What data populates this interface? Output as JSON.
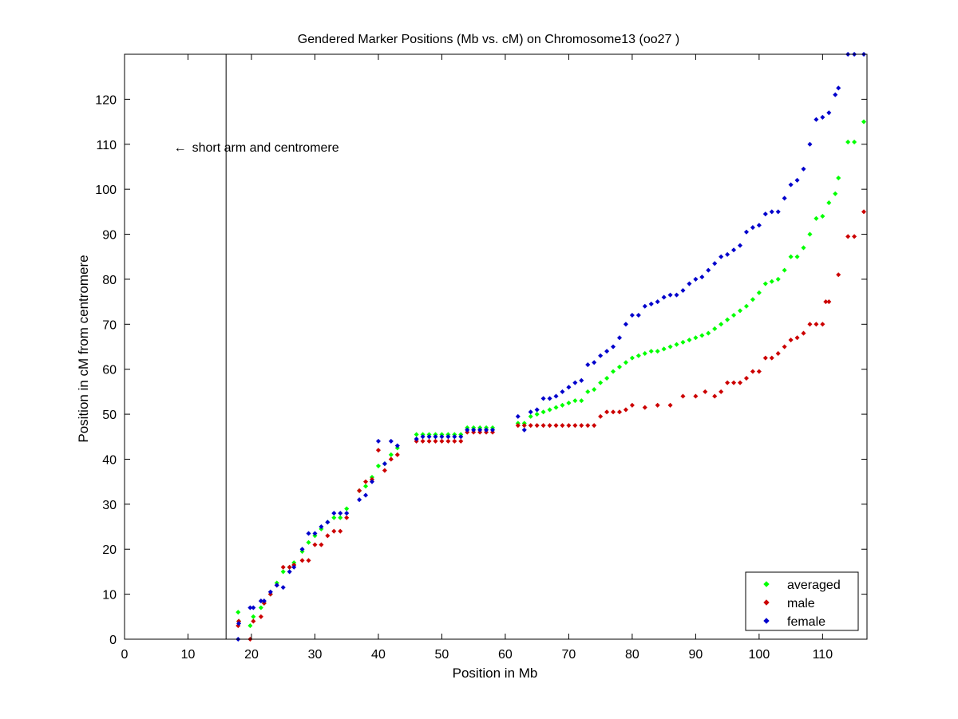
{
  "chart_data": {
    "type": "scatter",
    "title": "Gendered Marker Positions (Mb vs. cM) on Chromosome13 (oo27 )",
    "xlabel": "Position in Mb",
    "ylabel": "Position in cM from centromere",
    "xlim": [
      0,
      117
    ],
    "ylim": [
      0,
      130
    ],
    "xticks": [
      0,
      10,
      20,
      30,
      40,
      50,
      60,
      70,
      80,
      90,
      100,
      110
    ],
    "yticks": [
      0,
      10,
      20,
      30,
      40,
      50,
      60,
      70,
      80,
      90,
      100,
      110,
      120
    ],
    "grid": false,
    "legend_position": "bottom-right",
    "centromere_line_x": 16,
    "annotation": {
      "text": "short arm and centromere",
      "arrow": "←",
      "x": 8,
      "y": 110
    },
    "series": [
      {
        "name": "averaged",
        "color": "#00ff00",
        "points": [
          [
            17.9,
            6.0
          ],
          [
            18.0,
            4.0
          ],
          [
            19.8,
            3.0
          ],
          [
            20.3,
            5.0
          ],
          [
            21.5,
            7.0
          ],
          [
            22.0,
            8.0
          ],
          [
            23.0,
            10.0
          ],
          [
            24.0,
            12.5
          ],
          [
            25.0,
            15.0
          ],
          [
            26.0,
            16.0
          ],
          [
            26.7,
            17.0
          ],
          [
            28.0,
            19.5
          ],
          [
            29.0,
            21.5
          ],
          [
            30.0,
            23.0
          ],
          [
            31.0,
            24.5
          ],
          [
            32.0,
            26.0
          ],
          [
            33.0,
            27.0
          ],
          [
            34.0,
            27.0
          ],
          [
            35.0,
            29.0
          ],
          [
            37.0,
            33.0
          ],
          [
            38.0,
            34.0
          ],
          [
            39.0,
            36.0
          ],
          [
            40.0,
            38.5
          ],
          [
            41.0,
            39.0
          ],
          [
            42.0,
            41.0
          ],
          [
            43.0,
            42.5
          ],
          [
            46.0,
            45.5
          ],
          [
            47.0,
            45.5
          ],
          [
            48.0,
            45.5
          ],
          [
            49.0,
            45.5
          ],
          [
            50.0,
            45.5
          ],
          [
            51.0,
            45.5
          ],
          [
            52.0,
            45.5
          ],
          [
            53.0,
            45.5
          ],
          [
            54.0,
            47.0
          ],
          [
            55.0,
            47.0
          ],
          [
            56.0,
            47.0
          ],
          [
            57.0,
            47.0
          ],
          [
            58.0,
            47.0
          ],
          [
            62.0,
            48.0
          ],
          [
            63.0,
            48.0
          ],
          [
            64.0,
            49.5
          ],
          [
            65.0,
            50.0
          ],
          [
            66.0,
            50.5
          ],
          [
            67.0,
            51.0
          ],
          [
            68.0,
            51.5
          ],
          [
            69.0,
            52.0
          ],
          [
            70.0,
            52.5
          ],
          [
            71.0,
            53.0
          ],
          [
            72.0,
            53.0
          ],
          [
            73.0,
            55.0
          ],
          [
            74.0,
            55.5
          ],
          [
            75.0,
            57.0
          ],
          [
            76.0,
            58.0
          ],
          [
            77.0,
            59.5
          ],
          [
            78.0,
            60.5
          ],
          [
            79.0,
            61.5
          ],
          [
            80.0,
            62.5
          ],
          [
            81.0,
            63.0
          ],
          [
            82.0,
            63.5
          ],
          [
            83.0,
            64.0
          ],
          [
            84.0,
            64.0
          ],
          [
            85.0,
            64.5
          ],
          [
            86.0,
            65.0
          ],
          [
            87.0,
            65.5
          ],
          [
            88.0,
            66.0
          ],
          [
            89.0,
            66.5
          ],
          [
            90.0,
            67.0
          ],
          [
            91.0,
            67.5
          ],
          [
            92.0,
            68.0
          ],
          [
            93.0,
            69.0
          ],
          [
            94.0,
            70.0
          ],
          [
            95.0,
            71.0
          ],
          [
            96.0,
            72.0
          ],
          [
            97.0,
            73.0
          ],
          [
            98.0,
            74.0
          ],
          [
            99.0,
            75.5
          ],
          [
            100.0,
            77.0
          ],
          [
            101.0,
            79.0
          ],
          [
            102.0,
            79.5
          ],
          [
            103.0,
            80.0
          ],
          [
            104.0,
            82.0
          ],
          [
            105.0,
            85.0
          ],
          [
            106.0,
            85.0
          ],
          [
            107.0,
            87.0
          ],
          [
            108.0,
            90.0
          ],
          [
            109.0,
            93.5
          ],
          [
            110.0,
            94.0
          ],
          [
            111.0,
            97.0
          ],
          [
            112.0,
            99.0
          ],
          [
            112.5,
            102.5
          ],
          [
            114.0,
            110.5
          ],
          [
            115.0,
            110.5
          ],
          [
            116.5,
            115.0
          ]
        ]
      },
      {
        "name": "male",
        "color": "#cc0000",
        "points": [
          [
            17.9,
            3.0
          ],
          [
            18.0,
            4.0
          ],
          [
            19.8,
            0.0
          ],
          [
            20.3,
            4.0
          ],
          [
            21.5,
            5.0
          ],
          [
            22.0,
            8.0
          ],
          [
            23.0,
            10.0
          ],
          [
            24.0,
            12.0
          ],
          [
            25.0,
            16.0
          ],
          [
            26.0,
            16.0
          ],
          [
            26.7,
            16.5
          ],
          [
            28.0,
            17.5
          ],
          [
            29.0,
            17.5
          ],
          [
            30.0,
            21.0
          ],
          [
            31.0,
            21.0
          ],
          [
            32.0,
            23.0
          ],
          [
            33.0,
            24.0
          ],
          [
            34.0,
            24.0
          ],
          [
            35.0,
            27.0
          ],
          [
            37.0,
            33.0
          ],
          [
            38.0,
            35.0
          ],
          [
            39.0,
            35.5
          ],
          [
            40.0,
            42.0
          ],
          [
            41.0,
            37.5
          ],
          [
            42.0,
            40.0
          ],
          [
            43.0,
            41.0
          ],
          [
            46.0,
            44.0
          ],
          [
            47.0,
            44.0
          ],
          [
            48.0,
            44.0
          ],
          [
            49.0,
            44.0
          ],
          [
            50.0,
            44.0
          ],
          [
            51.0,
            44.0
          ],
          [
            52.0,
            44.0
          ],
          [
            53.0,
            44.0
          ],
          [
            54.0,
            46.0
          ],
          [
            55.0,
            46.0
          ],
          [
            56.0,
            46.0
          ],
          [
            57.0,
            46.0
          ],
          [
            58.0,
            46.0
          ],
          [
            62.0,
            47.5
          ],
          [
            63.0,
            47.5
          ],
          [
            64.0,
            47.5
          ],
          [
            65.0,
            47.5
          ],
          [
            66.0,
            47.5
          ],
          [
            67.0,
            47.5
          ],
          [
            68.0,
            47.5
          ],
          [
            69.0,
            47.5
          ],
          [
            70.0,
            47.5
          ],
          [
            71.0,
            47.5
          ],
          [
            72.0,
            47.5
          ],
          [
            73.0,
            47.5
          ],
          [
            74.0,
            47.5
          ],
          [
            75.0,
            49.5
          ],
          [
            76.0,
            50.5
          ],
          [
            77.0,
            50.5
          ],
          [
            78.0,
            50.5
          ],
          [
            79.0,
            51.0
          ],
          [
            80.0,
            52.0
          ],
          [
            82.0,
            51.5
          ],
          [
            84.0,
            52.0
          ],
          [
            86.0,
            52.0
          ],
          [
            88.0,
            54.0
          ],
          [
            90.0,
            54.0
          ],
          [
            91.5,
            55.0
          ],
          [
            93.0,
            54.0
          ],
          [
            94.0,
            55.0
          ],
          [
            95.0,
            57.0
          ],
          [
            96.0,
            57.0
          ],
          [
            97.0,
            57.0
          ],
          [
            98.0,
            58.0
          ],
          [
            99.0,
            59.5
          ],
          [
            100.0,
            59.5
          ],
          [
            101.0,
            62.5
          ],
          [
            102.0,
            62.5
          ],
          [
            103.0,
            63.5
          ],
          [
            104.0,
            65.0
          ],
          [
            105.0,
            66.5
          ],
          [
            106.0,
            67.0
          ],
          [
            107.0,
            68.0
          ],
          [
            108.0,
            70.0
          ],
          [
            109.0,
            70.0
          ],
          [
            110.0,
            70.0
          ],
          [
            110.5,
            75.0
          ],
          [
            111.0,
            75.0
          ],
          [
            112.5,
            81.0
          ],
          [
            114.0,
            89.5
          ],
          [
            115.0,
            89.5
          ],
          [
            116.5,
            95.0
          ]
        ]
      },
      {
        "name": "female",
        "color": "#0000cc",
        "points": [
          [
            17.9,
            0.0
          ],
          [
            18.0,
            3.5
          ],
          [
            19.8,
            7.0
          ],
          [
            20.3,
            7.0
          ],
          [
            21.5,
            8.5
          ],
          [
            22.0,
            8.5
          ],
          [
            23.0,
            10.5
          ],
          [
            24.0,
            12.0
          ],
          [
            25.0,
            11.5
          ],
          [
            26.0,
            15.0
          ],
          [
            26.7,
            16.0
          ],
          [
            28.0,
            20.0
          ],
          [
            29.0,
            23.5
          ],
          [
            30.0,
            23.5
          ],
          [
            31.0,
            25.0
          ],
          [
            32.0,
            26.0
          ],
          [
            33.0,
            28.0
          ],
          [
            34.0,
            28.0
          ],
          [
            35.0,
            28.0
          ],
          [
            37.0,
            31.0
          ],
          [
            38.0,
            32.0
          ],
          [
            39.0,
            35.0
          ],
          [
            40.0,
            44.0
          ],
          [
            41.0,
            39.0
          ],
          [
            42.0,
            44.0
          ],
          [
            43.0,
            43.0
          ],
          [
            46.0,
            44.5
          ],
          [
            47.0,
            45.0
          ],
          [
            48.0,
            45.0
          ],
          [
            49.0,
            45.0
          ],
          [
            50.0,
            45.0
          ],
          [
            51.0,
            45.0
          ],
          [
            52.0,
            45.0
          ],
          [
            53.0,
            45.0
          ],
          [
            54.0,
            46.5
          ],
          [
            55.0,
            46.5
          ],
          [
            56.0,
            46.5
          ],
          [
            57.0,
            46.5
          ],
          [
            58.0,
            46.5
          ],
          [
            62.0,
            49.5
          ],
          [
            63.0,
            46.5
          ],
          [
            64.0,
            50.5
          ],
          [
            65.0,
            51.0
          ],
          [
            66.0,
            53.5
          ],
          [
            67.0,
            53.5
          ],
          [
            68.0,
            54.0
          ],
          [
            69.0,
            55.0
          ],
          [
            70.0,
            56.0
          ],
          [
            71.0,
            57.0
          ],
          [
            72.0,
            57.5
          ],
          [
            73.0,
            61.0
          ],
          [
            74.0,
            61.5
          ],
          [
            75.0,
            63.0
          ],
          [
            76.0,
            64.0
          ],
          [
            77.0,
            65.0
          ],
          [
            78.0,
            67.0
          ],
          [
            79.0,
            70.0
          ],
          [
            80.0,
            72.0
          ],
          [
            81.0,
            72.0
          ],
          [
            82.0,
            74.0
          ],
          [
            83.0,
            74.5
          ],
          [
            84.0,
            75.0
          ],
          [
            85.0,
            76.0
          ],
          [
            86.0,
            76.5
          ],
          [
            87.0,
            76.5
          ],
          [
            88.0,
            77.5
          ],
          [
            89.0,
            79.0
          ],
          [
            90.0,
            80.0
          ],
          [
            91.0,
            80.5
          ],
          [
            92.0,
            82.0
          ],
          [
            93.0,
            83.5
          ],
          [
            94.0,
            85.0
          ],
          [
            95.0,
            85.5
          ],
          [
            96.0,
            86.5
          ],
          [
            97.0,
            87.5
          ],
          [
            98.0,
            90.5
          ],
          [
            99.0,
            91.5
          ],
          [
            100.0,
            92.0
          ],
          [
            101.0,
            94.5
          ],
          [
            102.0,
            95.0
          ],
          [
            103.0,
            95.0
          ],
          [
            104.0,
            98.0
          ],
          [
            105.0,
            101.0
          ],
          [
            106.0,
            102.0
          ],
          [
            107.0,
            104.5
          ],
          [
            108.0,
            110.0
          ],
          [
            109.0,
            115.5
          ],
          [
            110.0,
            116.0
          ],
          [
            111.0,
            117.0
          ],
          [
            112.0,
            121.0
          ],
          [
            112.5,
            122.5
          ],
          [
            114.0,
            130.0
          ],
          [
            115.0,
            130.0
          ],
          [
            116.5,
            130.0
          ]
        ]
      }
    ]
  }
}
